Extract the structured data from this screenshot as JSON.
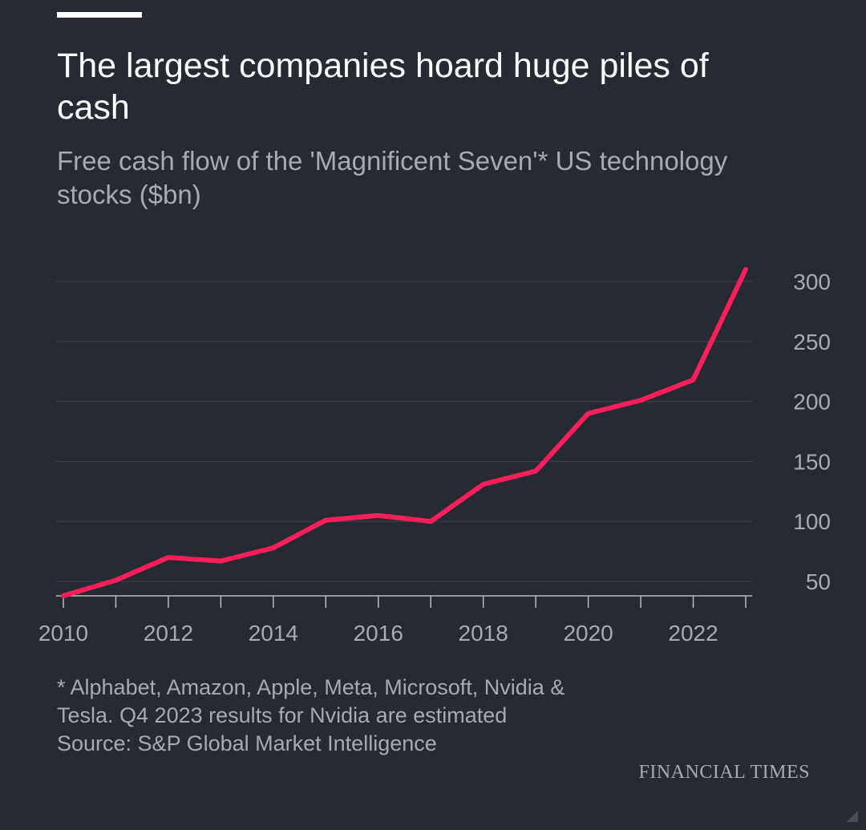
{
  "title": "The largest companies hoard huge piles of cash",
  "subtitle": "Free cash flow of the 'Magnificent Seven'* US technology stocks ($bn)",
  "chart_data": {
    "type": "line",
    "x": [
      2010,
      2011,
      2012,
      2013,
      2014,
      2015,
      2016,
      2017,
      2018,
      2019,
      2020,
      2021,
      2022,
      2023
    ],
    "series": [
      {
        "name": "Free cash flow ($bn)",
        "color": "#ff1e5c",
        "values": [
          38,
          51,
          70,
          67,
          78,
          101,
          105,
          100,
          131,
          142,
          190,
          201,
          218,
          310
        ]
      }
    ],
    "xticks": [
      "2010",
      "2012",
      "2014",
      "2016",
      "2018",
      "2020",
      "2022"
    ],
    "yticks": [
      "50",
      "100",
      "150",
      "200",
      "250",
      "300"
    ],
    "xlim": [
      2010,
      2023
    ],
    "ylim": [
      38,
      300
    ],
    "y_axis_side": "right",
    "grid": true
  },
  "footnote": {
    "line1": "* Alphabet, Amazon, Apple, Meta, Microsoft, Nvidia & Tesla. Q4 2023 results for Nvidia are estimated",
    "source": "Source: S&P Global Market Intelligence"
  },
  "brand": "FINANCIAL TIMES",
  "colors": {
    "background": "#262a33",
    "line": "#ff1e5c",
    "text_primary": "#ffffff",
    "text_secondary": "#a7aab1",
    "grid": "#3b3f48",
    "axis": "#b9bcc2"
  }
}
